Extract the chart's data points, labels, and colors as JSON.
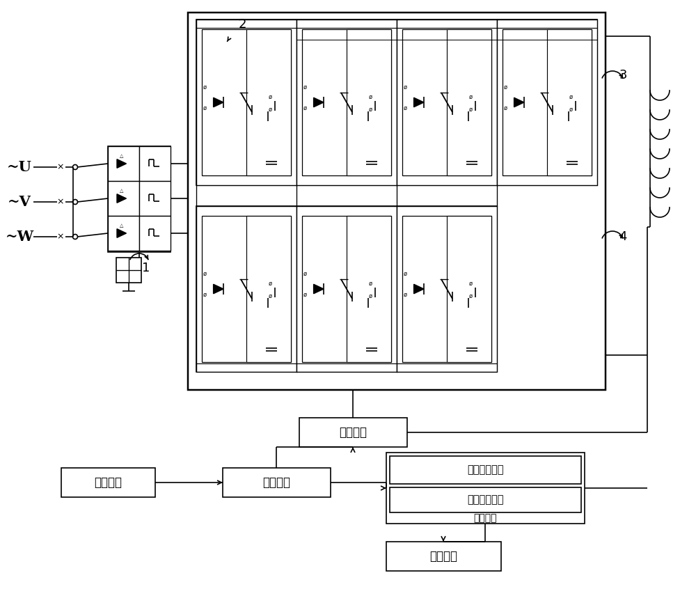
{
  "bg_color": "#ffffff",
  "lc": "#000000",
  "input_labels": [
    "~U",
    "~V",
    "~W"
  ],
  "drive_unit": "驱动单元",
  "timer_unit": "计时单元",
  "control_unit": "控制单元",
  "voltage_detect": "电压检测单元",
  "command_detect": "指令检测单元",
  "detect_unit": "检测单元",
  "operation_unit": "操作单元",
  "label1": "1",
  "label2": "2",
  "label3": "3",
  "label4": "4",
  "figw": 10.0,
  "figh": 8.56,
  "dpi": 100
}
